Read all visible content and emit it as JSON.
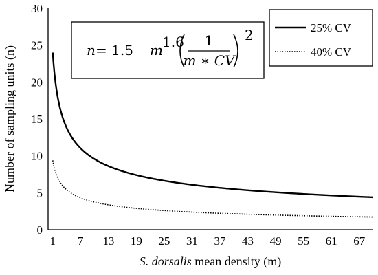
{
  "chart_data": {
    "type": "line",
    "xlabel_italic": "S. dorsalis",
    "xlabel_rest": " mean density (m)",
    "ylabel": "Number of sampling units (n)",
    "xlim": [
      0,
      70
    ],
    "ylim": [
      0,
      30
    ],
    "x_ticks": [
      "1",
      "7",
      "13",
      "19",
      "25",
      "31",
      "37",
      "43",
      "49",
      "55",
      "61",
      "67"
    ],
    "y_ticks": [
      "0",
      "5",
      "10",
      "15",
      "20",
      "25",
      "30"
    ],
    "grid": false,
    "legend_position": "top-right",
    "equation": {
      "lhs": "n",
      "eq": " = 1.5",
      "base": "m",
      "exponent": "1.6",
      "numerator": "1",
      "denominator": "m ∗ CV",
      "power": "2"
    },
    "series": [
      {
        "name": "25% CV",
        "cv": 0.25,
        "coefficient": 1.5,
        "exponent": 1.6,
        "style": "solid"
      },
      {
        "name": "40% CV",
        "cv": 0.4,
        "coefficient": 1.5,
        "exponent": 1.6,
        "style": "dotted"
      }
    ],
    "x_start": 1,
    "x_end": 70
  }
}
